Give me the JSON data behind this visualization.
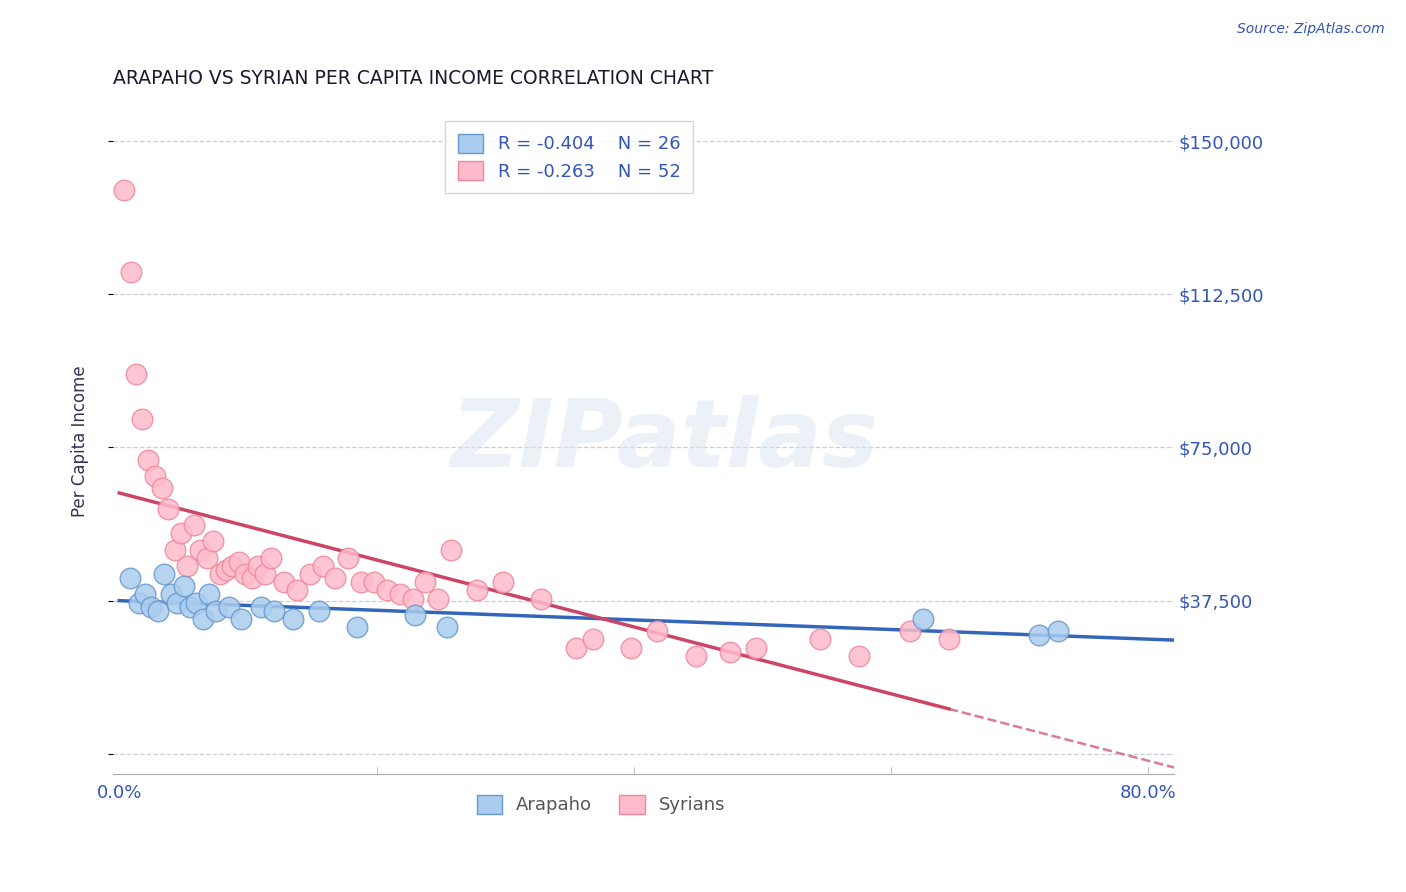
{
  "title": "ARAPAHO VS SYRIAN PER CAPITA INCOME CORRELATION CHART",
  "source": "Source: ZipAtlas.com",
  "ylabel": "Per Capita Income",
  "xlim": [
    -0.005,
    0.82
  ],
  "ylim": [
    -5000,
    158000
  ],
  "yticks": [
    0,
    37500,
    75000,
    112500,
    150000
  ],
  "ytick_labels": [
    "",
    "$37,500",
    "$75,000",
    "$112,500",
    "$150,000"
  ],
  "xticks": [
    0.0,
    0.2,
    0.4,
    0.6,
    0.8
  ],
  "xtick_labels": [
    "0.0%",
    "",
    "",
    "",
    "80.0%"
  ],
  "title_color": "#1a1a2e",
  "axis_label_color": "#333355",
  "right_axis_color": "#3355BB",
  "grid_color": "#CCCCDD",
  "watermark_text": "ZIPatlas",
  "legend_R1": "R = -0.404",
  "legend_N1": "N = 26",
  "legend_R2": "R = -0.263",
  "legend_N2": "N = 52",
  "arapaho_color": "#AACCEE",
  "arapaho_edge": "#6699CC",
  "syrian_color": "#FFBBCC",
  "syrian_edge": "#EE8899",
  "trend_arapaho_color": "#3366BB",
  "trend_syrian_color": "#CC4466",
  "background_color": "#FFFFFF",
  "arapaho_x": [
    0.008,
    0.015,
    0.02,
    0.025,
    0.03,
    0.035,
    0.04,
    0.045,
    0.05,
    0.055,
    0.06,
    0.065,
    0.07,
    0.075,
    0.085,
    0.095,
    0.11,
    0.12,
    0.135,
    0.155,
    0.185,
    0.23,
    0.255,
    0.625,
    0.715,
    0.73
  ],
  "arapaho_y": [
    43000,
    37000,
    39000,
    36000,
    35000,
    44000,
    39000,
    37000,
    41000,
    36000,
    37000,
    33000,
    39000,
    35000,
    36000,
    33000,
    36000,
    35000,
    33000,
    35000,
    31000,
    34000,
    31000,
    33000,
    29000,
    30000
  ],
  "syrian_x": [
    0.004,
    0.009,
    0.013,
    0.018,
    0.022,
    0.028,
    0.033,
    0.038,
    0.043,
    0.048,
    0.053,
    0.058,
    0.063,
    0.068,
    0.073,
    0.078,
    0.083,
    0.088,
    0.093,
    0.098,
    0.103,
    0.108,
    0.113,
    0.118,
    0.128,
    0.138,
    0.148,
    0.158,
    0.168,
    0.178,
    0.188,
    0.198,
    0.208,
    0.218,
    0.228,
    0.238,
    0.248,
    0.258,
    0.278,
    0.298,
    0.328,
    0.355,
    0.368,
    0.398,
    0.418,
    0.448,
    0.475,
    0.495,
    0.545,
    0.575,
    0.615,
    0.645
  ],
  "syrian_y": [
    138000,
    118000,
    93000,
    82000,
    72000,
    68000,
    65000,
    60000,
    50000,
    54000,
    46000,
    56000,
    50000,
    48000,
    52000,
    44000,
    45000,
    46000,
    47000,
    44000,
    43000,
    46000,
    44000,
    48000,
    42000,
    40000,
    44000,
    46000,
    43000,
    48000,
    42000,
    42000,
    40000,
    39000,
    38000,
    42000,
    38000,
    50000,
    40000,
    42000,
    38000,
    26000,
    28000,
    26000,
    30000,
    24000,
    25000,
    26000,
    28000,
    24000,
    30000,
    28000
  ]
}
